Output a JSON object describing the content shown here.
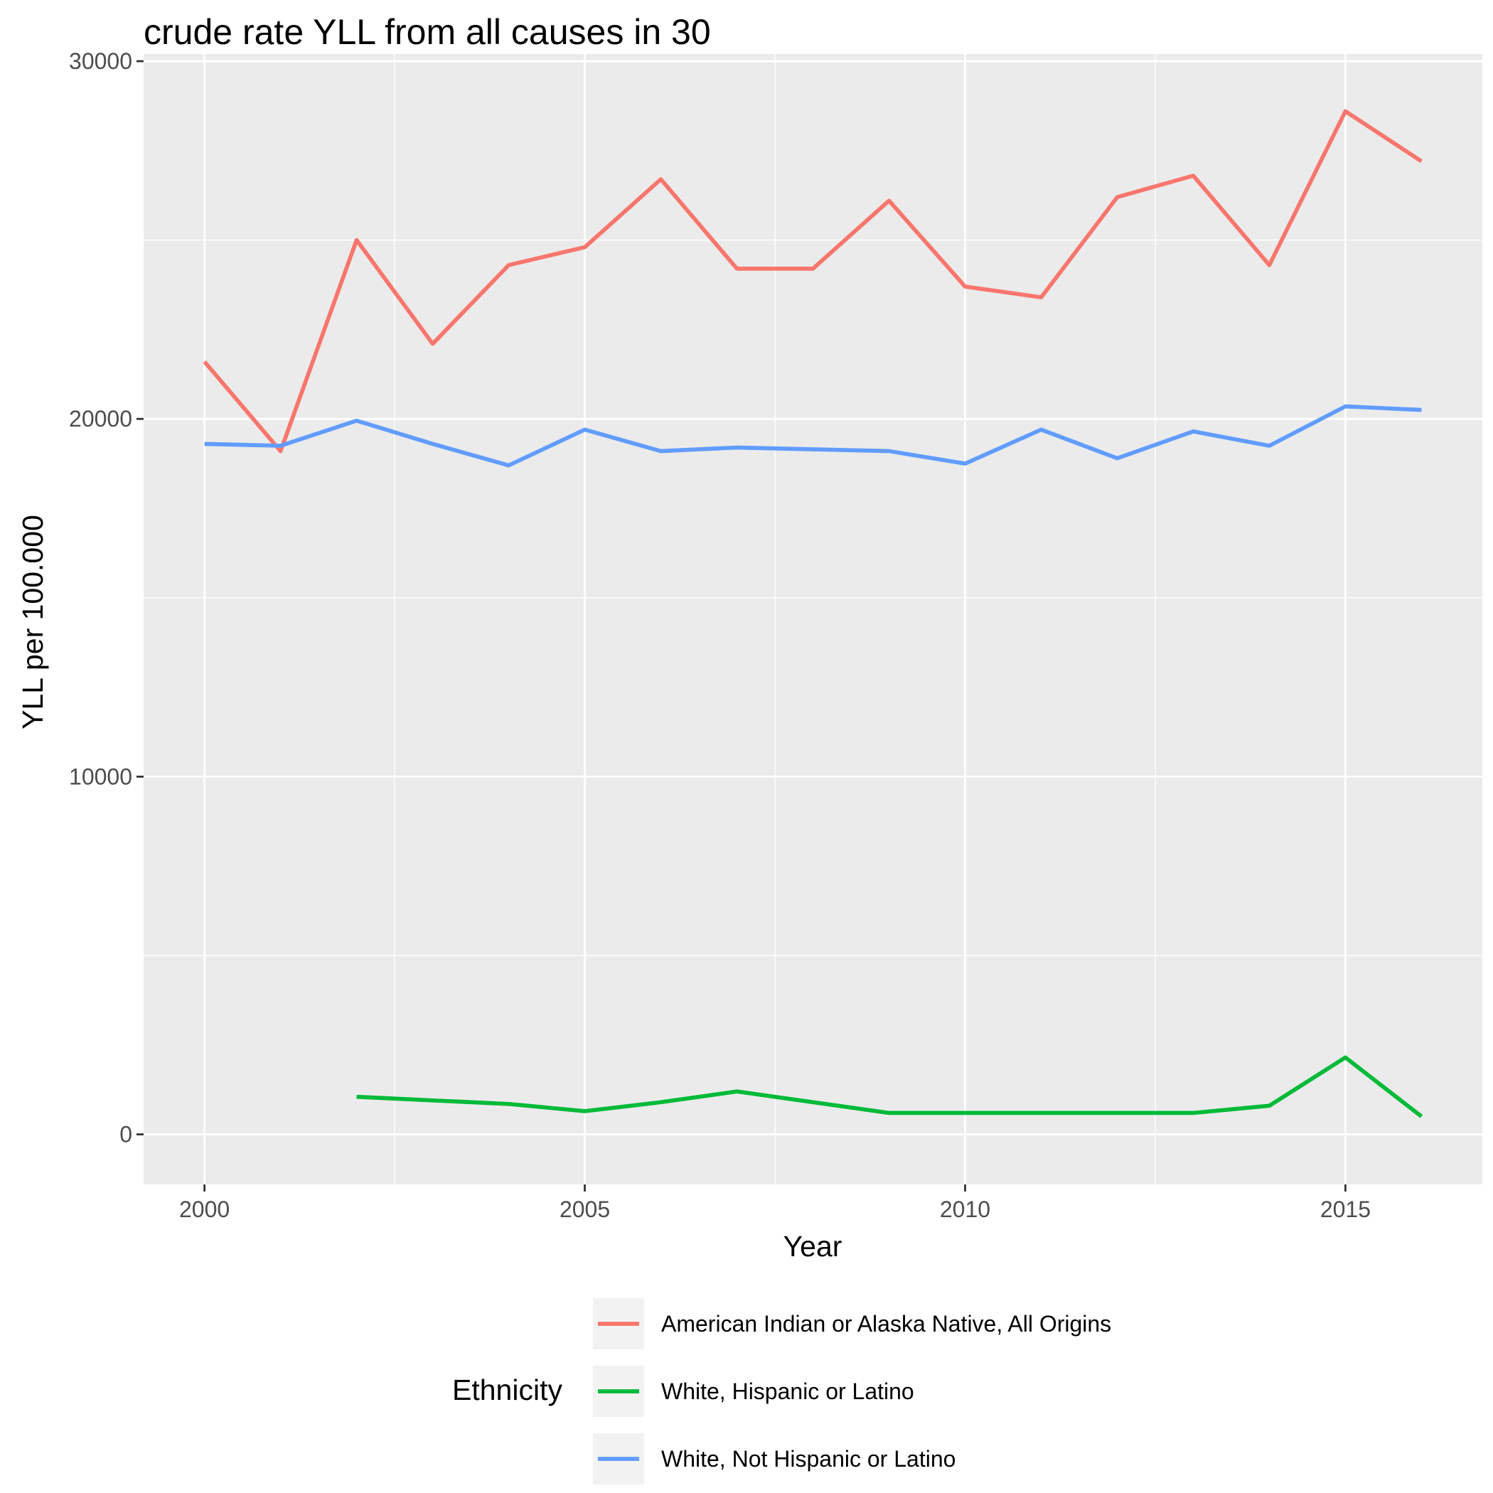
{
  "chart_data": {
    "type": "line",
    "title": "crude rate YLL from all causes in 30",
    "xlabel": "Year",
    "ylabel": "YLL per 100.000",
    "xlim": [
      1999.2,
      2016.8
    ],
    "ylim": [
      -1400,
      30200
    ],
    "x_ticks": [
      "2000",
      "2005",
      "2010",
      "2015"
    ],
    "y_ticks": [
      "0",
      "10000",
      "20000",
      "30000"
    ],
    "grid": true,
    "legend": {
      "title": "Ethnicity",
      "position": "bottom"
    },
    "series": [
      {
        "name": "American Indian or Alaska Native, All Origins",
        "color": "#F8766D",
        "x": [
          2000,
          2001,
          2002,
          2003,
          2004,
          2005,
          2006,
          2007,
          2008,
          2009,
          2010,
          2011,
          2012,
          2013,
          2014,
          2015,
          2016
        ],
        "y": [
          21600,
          19100,
          25000,
          22100,
          24300,
          24800,
          26700,
          24200,
          24200,
          26100,
          23700,
          23400,
          26200,
          26800,
          24300,
          28600,
          27200
        ]
      },
      {
        "name": "White, Hispanic or Latino",
        "color": "#00BA38",
        "x": [
          2002,
          2003,
          2004,
          2005,
          2006,
          2007,
          2008,
          2009,
          2010,
          2011,
          2012,
          2013,
          2014,
          2015,
          2016
        ],
        "y": [
          1050,
          950,
          850,
          650,
          900,
          1200,
          900,
          600,
          600,
          600,
          600,
          600,
          800,
          2150,
          500
        ]
      },
      {
        "name": "White, Not Hispanic or Latino",
        "color": "#619CFF",
        "x": [
          2000,
          2001,
          2002,
          2003,
          2004,
          2005,
          2006,
          2007,
          2008,
          2009,
          2010,
          2011,
          2012,
          2013,
          2014,
          2015,
          2016
        ],
        "y": [
          19300,
          19250,
          19950,
          19300,
          18700,
          19700,
          19100,
          19200,
          19150,
          19100,
          18750,
          19700,
          18900,
          19650,
          19250,
          20350,
          20250
        ]
      }
    ]
  }
}
